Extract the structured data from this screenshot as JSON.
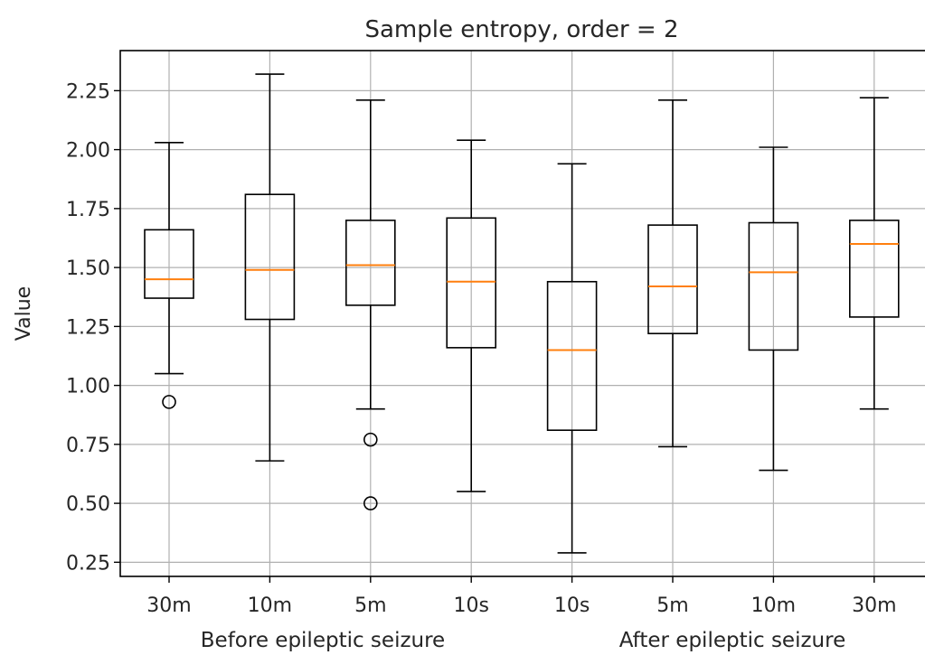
{
  "chart_data": {
    "type": "box",
    "title": "Sample entropy, order = 2",
    "ylabel": "Value",
    "xlabel": "",
    "ylim": [
      0.19,
      2.42
    ],
    "yticks": [
      0.25,
      0.5,
      0.75,
      1.0,
      1.25,
      1.5,
      1.75,
      2.0,
      2.25
    ],
    "ytick_labels": [
      "0.25",
      "0.50",
      "0.75",
      "1.00",
      "1.25",
      "1.50",
      "1.75",
      "2.00",
      "2.25"
    ],
    "grid": true,
    "categories": [
      "30m",
      "10m",
      "5m",
      "10s",
      "10s",
      "5m",
      "10m",
      "30m"
    ],
    "group_labels": [
      "Before epileptic seizure",
      "After epileptic seizure"
    ],
    "boxes": [
      {
        "whisker_low": 1.05,
        "q1": 1.37,
        "median": 1.45,
        "q3": 1.66,
        "whisker_high": 2.03,
        "outliers": [
          0.93
        ]
      },
      {
        "whisker_low": 0.68,
        "q1": 1.28,
        "median": 1.49,
        "q3": 1.81,
        "whisker_high": 2.32,
        "outliers": []
      },
      {
        "whisker_low": 0.9,
        "q1": 1.34,
        "median": 1.51,
        "q3": 1.7,
        "whisker_high": 2.21,
        "outliers": [
          0.77,
          0.5
        ]
      },
      {
        "whisker_low": 0.55,
        "q1": 1.16,
        "median": 1.44,
        "q3": 1.71,
        "whisker_high": 2.04,
        "outliers": []
      },
      {
        "whisker_low": 0.29,
        "q1": 0.81,
        "median": 1.15,
        "q3": 1.44,
        "whisker_high": 1.94,
        "outliers": []
      },
      {
        "whisker_low": 0.74,
        "q1": 1.22,
        "median": 1.42,
        "q3": 1.68,
        "whisker_high": 2.21,
        "outliers": []
      },
      {
        "whisker_low": 0.64,
        "q1": 1.15,
        "median": 1.48,
        "q3": 1.69,
        "whisker_high": 2.01,
        "outliers": []
      },
      {
        "whisker_low": 0.9,
        "q1": 1.29,
        "median": 1.6,
        "q3": 1.7,
        "whisker_high": 2.22,
        "outliers": []
      }
    ],
    "colors": {
      "box": "#000000",
      "median": "#ff7f0e",
      "grid": "#b0b0b0",
      "outlier": "#000000"
    }
  }
}
